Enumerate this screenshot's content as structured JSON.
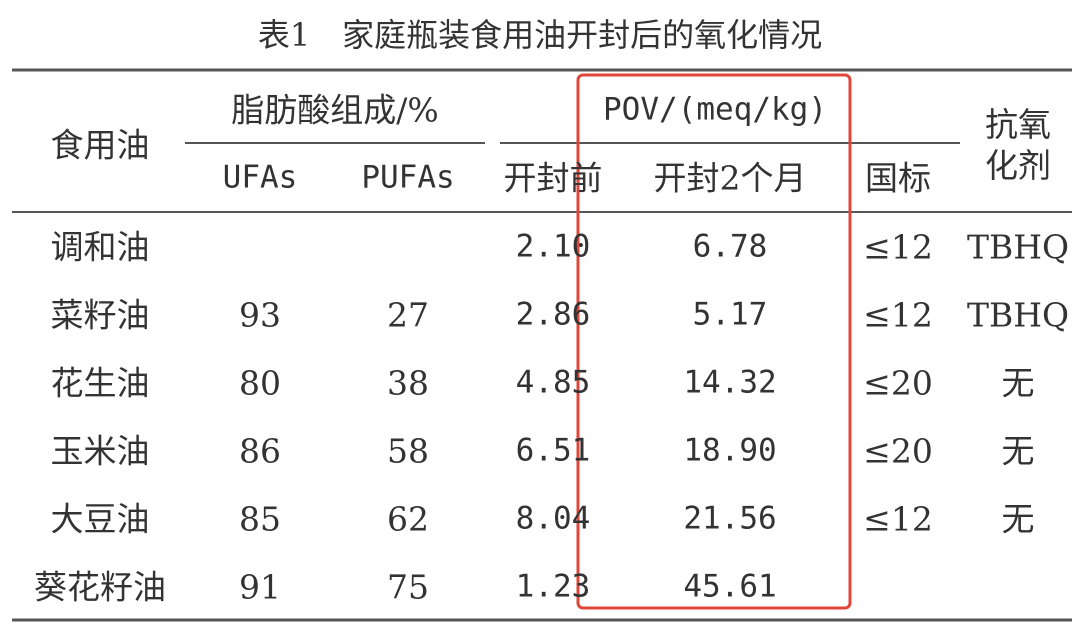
{
  "title": "表1　家庭瓶装食用油开封后的氧化情况",
  "header": {
    "oil": "食用油",
    "fatty_acid": "脂肪酸组成/%",
    "ufas": "UFAs",
    "pufas": "PUFAs",
    "pov": "POV/(meq/kg)",
    "before": "开封前",
    "after": "开封2个月",
    "standard": "国标",
    "antioxidant": "抗氧化剂"
  },
  "table": {
    "rows": [
      [
        "调和油",
        null,
        null,
        "2.10",
        "6.78",
        "≤12",
        "TBHQ"
      ],
      [
        "菜籽油",
        "93",
        "27",
        "2.86",
        "5.17",
        "≤12",
        "TBHQ"
      ],
      [
        "花生油",
        "80",
        "38",
        "4.85",
        "14.32",
        "≤20",
        "无"
      ],
      [
        "玉米油",
        "86",
        "58",
        "6.51",
        "18.90",
        "≤20",
        "无"
      ],
      [
        "大豆油",
        "85",
        "62",
        "8.04",
        "21.56",
        "≤12",
        "无"
      ],
      [
        "葵花籽油",
        "91",
        "75",
        "1.23",
        "45.61",
        null,
        null
      ]
    ]
  }
}
